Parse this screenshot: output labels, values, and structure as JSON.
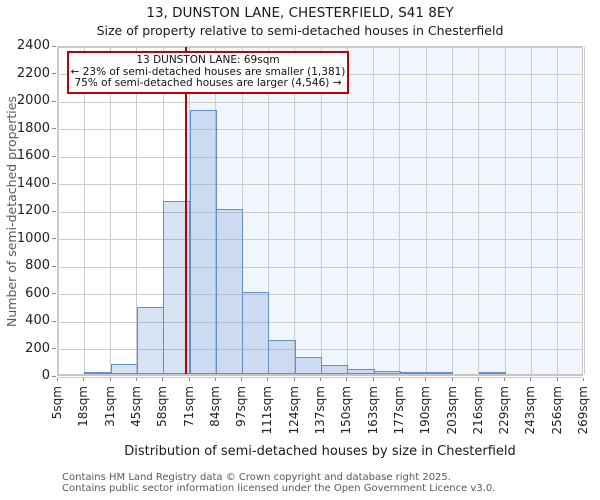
{
  "title": "13, DUNSTON LANE, CHESTERFIELD, S41 8EY",
  "subtitle": "Size of property relative to semi-detached houses in Chesterfield",
  "annotation": {
    "line1": "13 DUNSTON LANE: 69sqm",
    "line2": "← 23% of semi-detached houses are smaller (1,381)",
    "line3": "75% of semi-detached houses are larger (4,546) →"
  },
  "chart_data": {
    "type": "bar",
    "title": "13, DUNSTON LANE, CHESTERFIELD, S41 8EY",
    "subtitle": "Size of property relative to semi-detached houses in Chesterfield",
    "xlabel": "Distribution of semi-detached houses by size in Chesterfield",
    "ylabel": "Number of semi-detached properties",
    "x_tick_labels": [
      "5sqm",
      "18sqm",
      "31sqm",
      "45sqm",
      "58sqm",
      "71sqm",
      "84sqm",
      "97sqm",
      "111sqm",
      "124sqm",
      "137sqm",
      "150sqm",
      "163sqm",
      "177sqm",
      "190sqm",
      "203sqm",
      "216sqm",
      "229sqm",
      "243sqm",
      "256sqm",
      "269sqm"
    ],
    "bin_edges_sqm": [
      5,
      18,
      31,
      45,
      58,
      71,
      84,
      97,
      111,
      124,
      137,
      150,
      163,
      177,
      190,
      203,
      216,
      229,
      243,
      256,
      269
    ],
    "values": [
      0,
      10,
      75,
      490,
      1260,
      1920,
      1200,
      600,
      245,
      125,
      65,
      35,
      25,
      15,
      8,
      0,
      8,
      0,
      0,
      0
    ],
    "y_ticks": [
      0,
      200,
      400,
      600,
      800,
      1000,
      1200,
      1400,
      1600,
      1800,
      2000,
      2200,
      2400
    ],
    "ylim": [
      0,
      2400
    ],
    "xlim_sqm": [
      5,
      269
    ],
    "grid": true,
    "marker_sqm": 69,
    "colors": {
      "marker": "#c00000",
      "bar_fill": "rgba(96,144,208,0.25)",
      "bar_stroke": "#6090d0",
      "shade_right_of_marker": "#f1f5fc",
      "gridline": "#cccccc",
      "annotation_border": "#c00000"
    }
  },
  "footer": {
    "line1": "Contains HM Land Registry data © Crown copyright and database right 2025.",
    "line2": "Contains public sector information licensed under the Open Government Licence v3.0."
  }
}
